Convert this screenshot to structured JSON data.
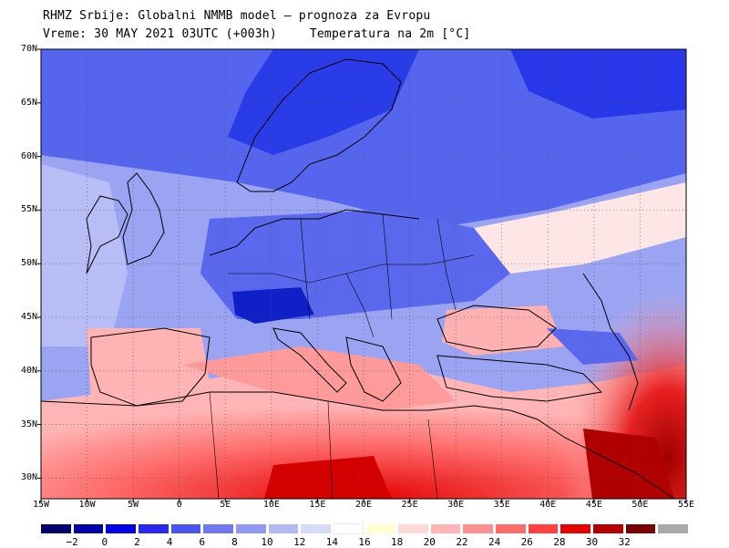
{
  "header": {
    "line1": "RHMZ Srbije: Globalni NMMB model – prognoza za Evropu",
    "line2_left": "Vreme: 30 MAY 2021 03UTC (+003h)",
    "line2_right": "Temperatura na 2m [°C]"
  },
  "map": {
    "lat_labels": [
      "70N",
      "65N",
      "60N",
      "55N",
      "50N",
      "45N",
      "40N",
      "35N",
      "30N"
    ],
    "lon_labels": [
      "15W",
      "10W",
      "5W",
      "0",
      "5E",
      "10E",
      "15E",
      "20E",
      "25E",
      "30E",
      "35E",
      "40E",
      "45E",
      "50E",
      "55E"
    ],
    "cold_color": "#3a55e6",
    "warm_color": "#e8403a",
    "land_border_color": "#000000"
  },
  "colorbar": {
    "labels": [
      "−2",
      "0",
      "2",
      "4",
      "6",
      "8",
      "10",
      "12",
      "14",
      "16",
      "18",
      "20",
      "22",
      "24",
      "26",
      "28",
      "30",
      "32"
    ],
    "colors": [
      "#00006e",
      "#0000aa",
      "#0000e6",
      "#2828f0",
      "#4a55f0",
      "#6f78f0",
      "#9098f2",
      "#b3b9f5",
      "#d7dbfa",
      "#ffffff",
      "#ffffd2",
      "#ffd8d8",
      "#ffb5b5",
      "#ff9090",
      "#ff6a6a",
      "#ff4040",
      "#e60000",
      "#b40000",
      "#780000",
      "#a9a9a9"
    ]
  }
}
